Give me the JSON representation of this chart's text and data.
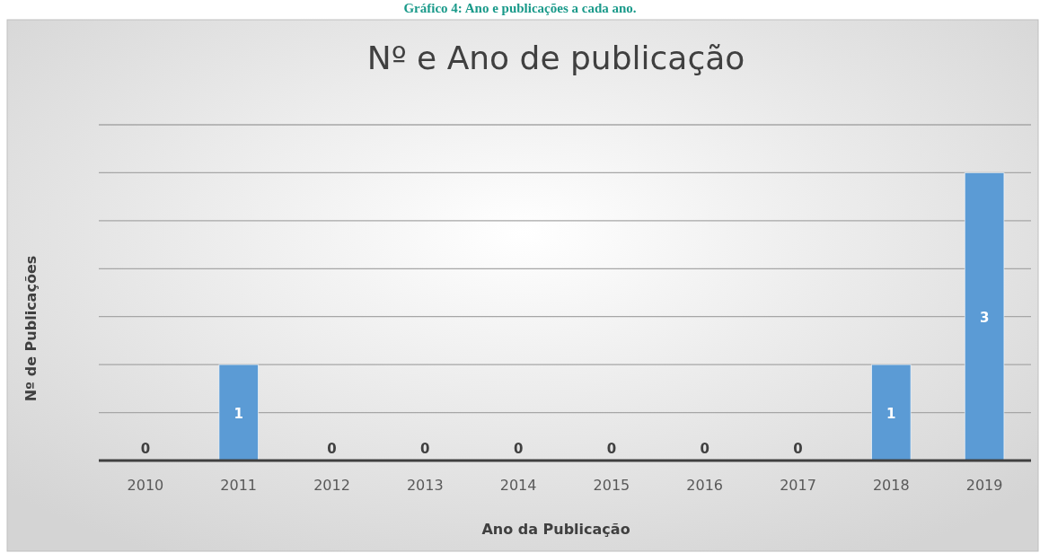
{
  "chart_data": {
    "type": "bar",
    "title": "Nº e Ano de publicação",
    "xlabel": "Ano da Publicação",
    "ylabel": "Nº de Publicações",
    "annotations": [
      "Gráfico 4: Ano e publicações a cada ano."
    ],
    "categories": [
      "2010",
      "2011",
      "2012",
      "2013",
      "2014",
      "2015",
      "2016",
      "2017",
      "2018",
      "2019"
    ],
    "values": [
      0,
      1,
      0,
      0,
      0,
      0,
      0,
      0,
      1,
      3
    ],
    "color": "#5b9bd5",
    "ylim": [
      0,
      3.5
    ],
    "yticks": [
      {
        "value": 0,
        "label": null
      },
      {
        "value": 0.5,
        "label": null
      },
      {
        "value": 1,
        "label": null
      },
      {
        "value": 1.5,
        "label": null
      },
      {
        "value": 2,
        "label": null
      },
      {
        "value": 2.5,
        "label": null
      },
      {
        "value": 3,
        "label": null
      },
      {
        "value": 3.5,
        "label": null
      }
    ],
    "tick_labels": "x",
    "grid": "y",
    "data_labels": true
  }
}
